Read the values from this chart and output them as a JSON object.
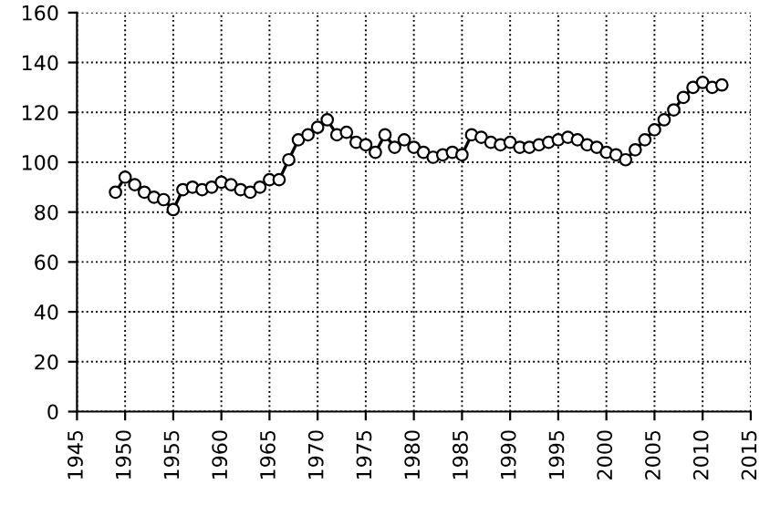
{
  "chart_data": {
    "type": "line",
    "x": [
      1949,
      1950,
      1951,
      1952,
      1953,
      1954,
      1955,
      1956,
      1957,
      1958,
      1959,
      1960,
      1961,
      1962,
      1963,
      1964,
      1965,
      1966,
      1967,
      1968,
      1969,
      1970,
      1971,
      1972,
      1973,
      1974,
      1975,
      1976,
      1977,
      1978,
      1979,
      1980,
      1981,
      1982,
      1983,
      1984,
      1985,
      1986,
      1987,
      1988,
      1989,
      1990,
      1991,
      1992,
      1993,
      1994,
      1995,
      1996,
      1997,
      1998,
      1999,
      2000,
      2001,
      2002,
      2003,
      2004,
      2005,
      2006,
      2007,
      2008,
      2009,
      2010,
      2011,
      2012
    ],
    "series": [
      {
        "color": "#000000",
        "values": [
          88,
          94,
          91,
          88,
          86,
          85,
          81,
          89,
          90,
          89,
          90,
          92,
          91,
          89,
          88,
          90,
          93,
          93,
          101,
          109,
          111,
          114,
          117,
          111,
          112,
          108,
          107,
          104,
          111,
          106,
          109,
          106,
          104,
          102,
          103,
          104,
          103,
          111,
          110,
          108,
          107,
          108,
          106,
          106,
          107,
          108,
          109,
          110,
          109,
          107,
          106,
          104,
          103,
          101,
          105,
          109,
          113,
          117,
          121,
          126,
          130,
          132,
          130,
          131
        ]
      }
    ],
    "xlim": [
      1945,
      2015
    ],
    "xticks": [
      1945,
      1950,
      1955,
      1960,
      1965,
      1970,
      1975,
      1980,
      1985,
      1990,
      1995,
      2000,
      2005,
      2010,
      2015
    ],
    "ylim": [
      0,
      160
    ],
    "yticks": [
      0,
      20,
      40,
      60,
      80,
      100,
      120,
      140,
      160
    ],
    "grid": true,
    "marker": "circle",
    "line_style": "solid"
  }
}
